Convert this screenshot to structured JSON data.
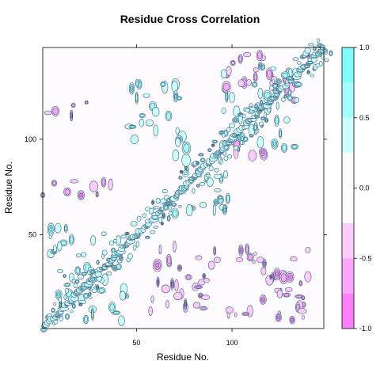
{
  "chart_data": {
    "type": "heatmap",
    "title": "Residue Cross Correlation",
    "xlabel": "Residue No.",
    "ylabel": "Residue No.",
    "xlim": [
      1,
      148
    ],
    "ylim": [
      1,
      148
    ],
    "x_ticks": [
      "50",
      "100"
    ],
    "y_ticks": [
      "50",
      "100"
    ],
    "colorbar": {
      "range": [
        -1.0,
        1.0
      ],
      "tick_labels": [
        "1.0",
        "0.5",
        "0.0",
        "-0.5",
        "-1.0"
      ],
      "breaks": [
        -1.0,
        -0.75,
        -0.5,
        -0.25,
        0.25,
        0.5,
        0.75,
        1.0
      ],
      "colors": [
        "#ff80ff",
        "#ffa6ff",
        "#ffccff",
        "#fdfbfe",
        "#ccffff",
        "#a6ffff",
        "#80ffff"
      ]
    },
    "contour_line_color": "#2f4f6f",
    "grid": false,
    "legend": "colorbar-right",
    "positively_correlated_blocks": [
      {
        "x": [
          1,
          148
        ],
        "y": [
          1,
          148
        ],
        "note": "diagonal band"
      },
      {
        "x": [
          5,
          45
        ],
        "y": [
          5,
          55
        ]
      },
      {
        "x": [
          45,
          75
        ],
        "y": [
          95,
          130
        ]
      },
      {
        "x": [
          95,
          135
        ],
        "y": [
          95,
          140
        ]
      },
      {
        "x": [
          70,
          100
        ],
        "y": [
          60,
          100
        ]
      }
    ],
    "negatively_correlated_blocks": [
      {
        "x": [
          1,
          40
        ],
        "y": [
          70,
          80
        ]
      },
      {
        "x": [
          55,
          85
        ],
        "y": [
          10,
          45
        ]
      },
      {
        "x": [
          85,
          140
        ],
        "y": [
          5,
          45
        ]
      },
      {
        "x": [
          95,
          120
        ],
        "y": [
          90,
          100
        ]
      },
      {
        "x": [
          95,
          140
        ],
        "y": [
          120,
          145
        ]
      },
      {
        "x": [
          1,
          25
        ],
        "y": [
          110,
          120
        ]
      }
    ]
  }
}
